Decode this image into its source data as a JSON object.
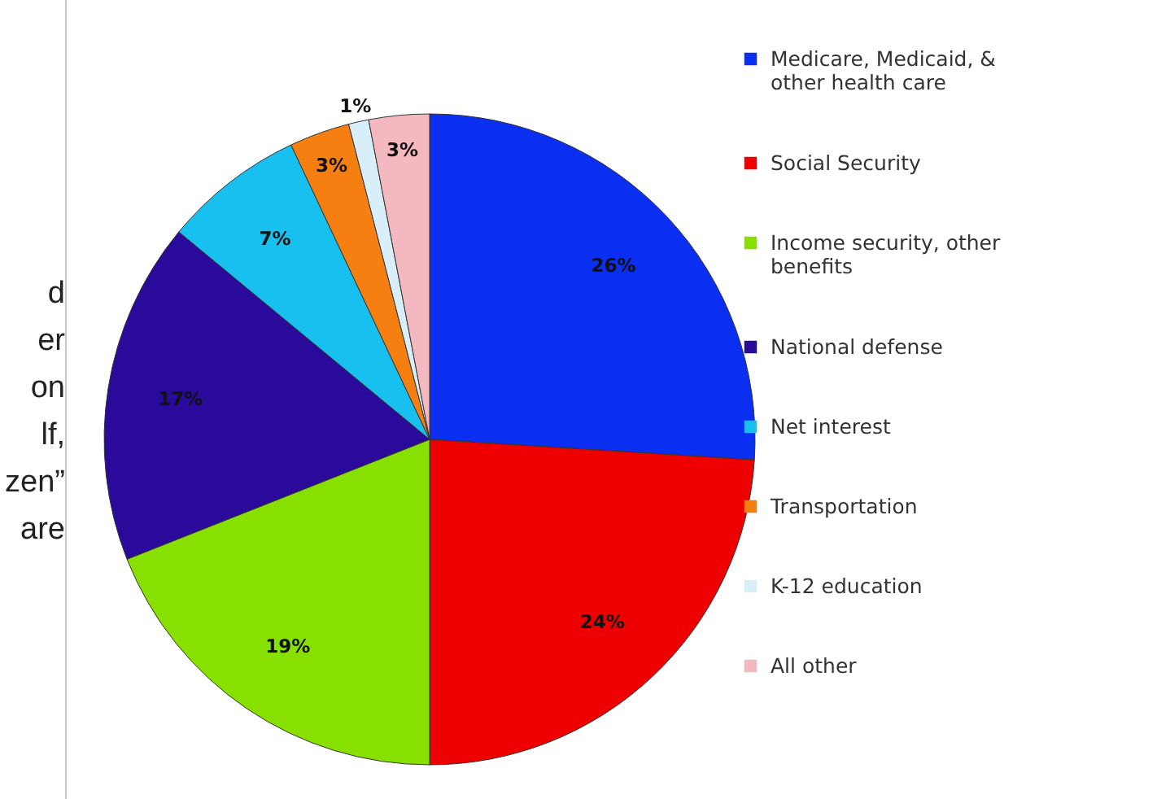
{
  "chart_data": {
    "type": "pie",
    "categories": [
      "Medicare, Medicaid, & other health care",
      "Social Security",
      "Income security, other benefits",
      "National defense",
      "Net interest",
      "Transportation",
      "K-12 education",
      "All other"
    ],
    "values": [
      26,
      24,
      19,
      17,
      7,
      3,
      1,
      3
    ],
    "colors": [
      "#0a2ff0",
      "#ee0000",
      "#88e000",
      "#2a0a9a",
      "#18c0f0",
      "#f57f10",
      "#d8eef8",
      "#f4b8c0"
    ],
    "value_labels": [
      "26%",
      "24%",
      "19%",
      "17%",
      "7%",
      "3%",
      "1%",
      "3%"
    ],
    "legend": "right",
    "annotations": [
      "d",
      "er",
      "on",
      "lf,",
      "zen”",
      "are"
    ]
  }
}
